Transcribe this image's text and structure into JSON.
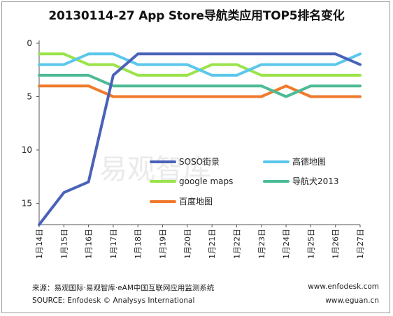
{
  "title": "20130114-27 App Store导航类应用TOP5排名变化",
  "watermark": "易观智库",
  "footer": {
    "source_cn": "来源：易观国际·易观智库·eAM中国互联网应用监测系统",
    "source_en": "SOURCE: Enfodesk © Analysys International",
    "site1": "www.enfodesk.com",
    "site2": "www.eguan.cn"
  },
  "chart_data": {
    "type": "line",
    "title": "20130114-27 App Store导航类应用TOP5排名变化",
    "xlabel": "",
    "ylabel": "",
    "categories": [
      "1月14日",
      "1月15日",
      "1月16日",
      "1月17日",
      "1月18日",
      "1月19日",
      "1月20日",
      "1月21日",
      "1月22日",
      "1月23日",
      "1月24日",
      "1月25日",
      "1月26日",
      "1月27日"
    ],
    "ylim": [
      0,
      17
    ],
    "y_inverted": true,
    "y_ticks": [
      0,
      5,
      10,
      15
    ],
    "grid": false,
    "legend_position": "center-right",
    "series": [
      {
        "name": "SOSO街景",
        "color": "#4a62b8",
        "values": [
          17,
          14,
          13,
          3,
          1,
          1,
          1,
          1,
          1,
          1,
          1,
          1,
          1,
          2
        ]
      },
      {
        "name": "高德地图",
        "color": "#5bc7ec",
        "values": [
          2,
          2,
          1,
          1,
          2,
          2,
          2,
          3,
          3,
          2,
          2,
          2,
          2,
          1
        ]
      },
      {
        "name": "google maps",
        "color": "#9be34b",
        "values": [
          1,
          1,
          2,
          2,
          3,
          3,
          3,
          2,
          2,
          3,
          3,
          3,
          3,
          3
        ]
      },
      {
        "name": "导航犬2013",
        "color": "#4dbb96",
        "values": [
          3,
          3,
          3,
          4,
          4,
          4,
          4,
          4,
          4,
          4,
          5,
          4,
          4,
          4
        ]
      },
      {
        "name": "百度地图",
        "color": "#f07a2c",
        "values": [
          4,
          4,
          4,
          5,
          5,
          5,
          5,
          5,
          5,
          5,
          4,
          5,
          5,
          5
        ]
      }
    ]
  }
}
